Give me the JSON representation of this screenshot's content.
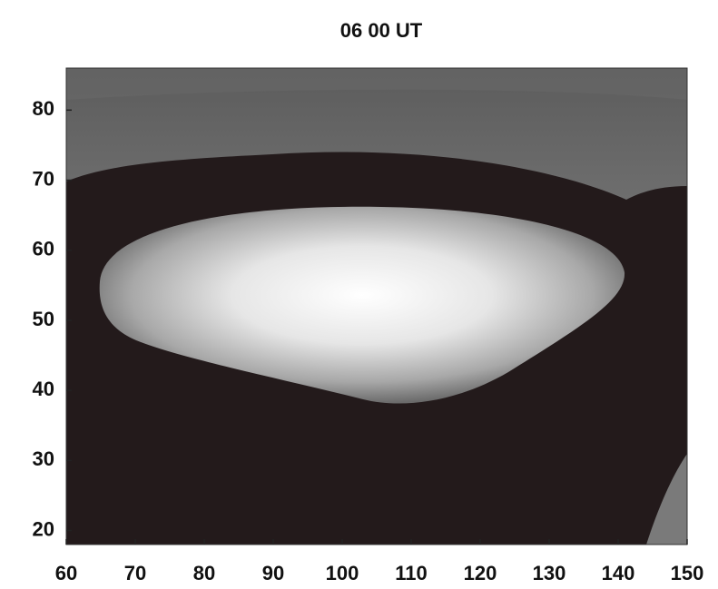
{
  "chart_data": {
    "type": "image",
    "title": "06 00 UT",
    "xlim": [
      60,
      150
    ],
    "xticks": [
      60,
      70,
      80,
      90,
      100,
      110,
      120,
      130,
      140,
      150
    ],
    "ylim": [
      18,
      86
    ],
    "yticks": [
      20,
      30,
      40,
      50,
      60,
      70,
      80
    ]
  }
}
